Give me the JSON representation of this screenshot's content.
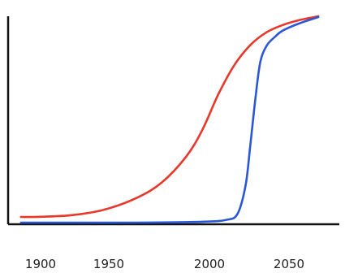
{
  "chart_data": {
    "type": "line",
    "title": "",
    "xlabel": "",
    "ylabel": "",
    "xlim": [
      1880,
      2085
    ],
    "ylim": [
      0,
      100
    ],
    "grid": false,
    "y_ticks_shown": false,
    "x_ticks": [
      "1900",
      "1950",
      "2000",
      "2050"
    ],
    "series": [
      {
        "color": "#e8382a",
        "x": [
          1888,
          1900,
          1920,
          1940,
          1960,
          1975,
          1990,
          2000,
          2010,
          2020,
          2030,
          2040,
          2050,
          2060,
          2072
        ],
        "y": [
          3.5,
          3.6,
          4.4,
          7.1,
          12.8,
          20.0,
          32.3,
          45.0,
          62.3,
          76.5,
          86.2,
          92.3,
          95.8,
          98.1,
          100.0
        ]
      },
      {
        "color": "#2a57d6",
        "x": [
          1888,
          1920,
          1960,
          2000,
          2015,
          2022,
          2027,
          2030,
          2033,
          2036,
          2040,
          2045,
          2050,
          2060,
          2072
        ],
        "y": [
          0.8,
          0.8,
          0.8,
          1.2,
          2.1,
          5.0,
          18.8,
          38.5,
          60.0,
          77.7,
          85.8,
          90.0,
          93.1,
          96.5,
          99.6
        ]
      }
    ]
  }
}
